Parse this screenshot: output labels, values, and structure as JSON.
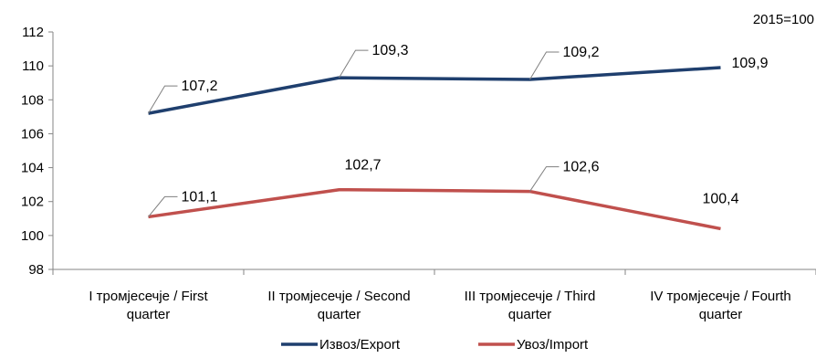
{
  "chart_data": {
    "type": "line",
    "title": "",
    "note": "2015=100",
    "xlabel": "",
    "ylabel": "",
    "ylim": [
      98,
      112
    ],
    "y_ticks": [
      98,
      100,
      102,
      104,
      106,
      108,
      110,
      112
    ],
    "y_tick_labels": [
      "98",
      "100",
      "102",
      "104",
      "106",
      "108",
      "110",
      "112"
    ],
    "categories": [
      [
        "I тромјесечје / First",
        "quarter"
      ],
      [
        "II тромјесечје / Second",
        "quarter"
      ],
      [
        "III тромјесечје / Third",
        "quarter"
      ],
      [
        "IV тромјесечје / Fourth",
        "quarter"
      ]
    ],
    "grid": false,
    "legend_position": "bottom",
    "series": [
      {
        "name": "Извоз/Export",
        "color": "#1f3f6e",
        "values": [
          107.2,
          109.3,
          109.2,
          109.9
        ],
        "labels": [
          "107,2",
          "109,3",
          "109,2",
          "109,9"
        ]
      },
      {
        "name": "Увоз/Import",
        "color": "#c0504d",
        "values": [
          101.1,
          102.7,
          102.6,
          100.4
        ],
        "labels": [
          "101,1",
          "102,7",
          "102,6",
          "100,4"
        ]
      }
    ]
  }
}
